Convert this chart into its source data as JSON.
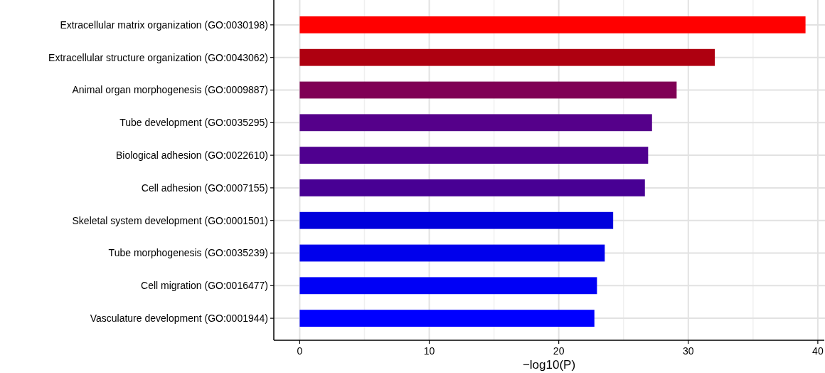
{
  "chart_data": {
    "type": "bar",
    "orientation": "horizontal",
    "xlabel": "−log10(P)",
    "categories": [
      "Extracellular matrix organization (GO:0030198)",
      "Extracellular structure organization (GO:0043062)",
      "Animal organ morphogenesis (GO:0009887)",
      "Tube development (GO:0035295)",
      "Biological adhesion (GO:0022610)",
      "Cell adhesion (GO:0007155)",
      "Skeletal system development (GO:0001501)",
      "Tube morphogenesis (GO:0035239)",
      "Cell migration (GO:0016477)",
      "Vasculature development (GO:0001944)"
    ],
    "values": [
      39.05,
      32.05,
      29.1,
      27.2,
      26.9,
      26.65,
      24.2,
      23.55,
      22.95,
      22.75
    ],
    "colors": [
      "#ff0000",
      "#ae0010",
      "#800055",
      "#55008a",
      "#4f008f",
      "#480094",
      "#0000dc",
      "#0000ec",
      "#0000f6",
      "#0000ff"
    ],
    "xlim": [
      -2,
      40.5
    ],
    "xticks": [
      0,
      {
        "value": 5,
        "label": null
      },
      10,
      {
        "value": 15,
        "label": null
      },
      20,
      {
        "value": 25,
        "label": null
      },
      30,
      {
        "value": 35,
        "label": null
      },
      40
    ],
    "grid": true
  }
}
